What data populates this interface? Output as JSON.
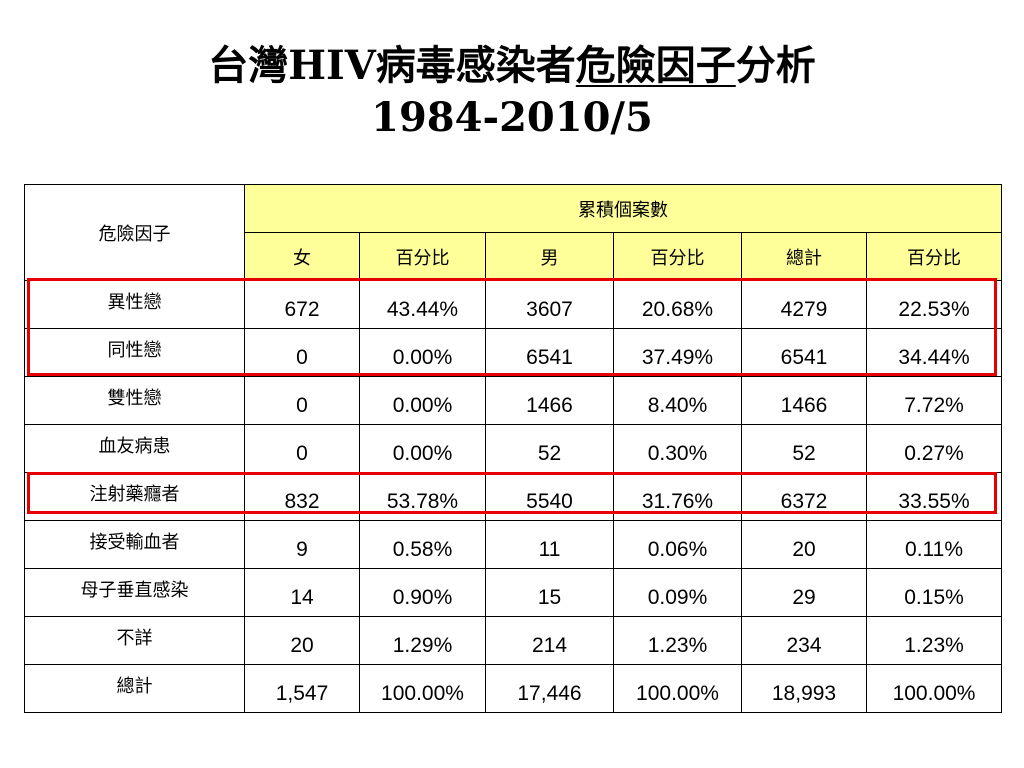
{
  "title": {
    "prefix": "台灣HIV病毒感染者",
    "underlined": "危險因子",
    "suffix": "分析",
    "subtitle": "1984-2010/5"
  },
  "table": {
    "corner_label": "危險因子",
    "group_header": "累積個案數",
    "columns": [
      "女",
      "百分比",
      "男",
      "百分比",
      "總計",
      "百分比"
    ],
    "rows": [
      {
        "label": "異性戀",
        "values": [
          "672",
          "43.44%",
          "3607",
          "20.68%",
          "4279",
          "22.53%"
        ]
      },
      {
        "label": "同性戀",
        "values": [
          "0",
          "0.00%",
          "6541",
          "37.49%",
          "6541",
          "34.44%"
        ]
      },
      {
        "label": "雙性戀",
        "values": [
          "0",
          "0.00%",
          "1466",
          "8.40%",
          "1466",
          "7.72%"
        ]
      },
      {
        "label": "血友病患",
        "values": [
          "0",
          "0.00%",
          "52",
          "0.30%",
          "52",
          "0.27%"
        ]
      },
      {
        "label": "注射藥癮者",
        "values": [
          "832",
          "53.78%",
          "5540",
          "31.76%",
          "6372",
          "33.55%"
        ]
      },
      {
        "label": "接受輸血者",
        "values": [
          "9",
          "0.58%",
          "11",
          "0.06%",
          "20",
          "0.11%"
        ]
      },
      {
        "label": "母子垂直感染",
        "values": [
          "14",
          "0.90%",
          "15",
          "0.09%",
          "29",
          "0.15%"
        ]
      },
      {
        "label": "不詳",
        "values": [
          "20",
          "1.29%",
          "214",
          "1.23%",
          "234",
          "1.23%"
        ]
      },
      {
        "label": "總計",
        "values": [
          "1,547",
          "100.00%",
          "17,446",
          "100.00%",
          "18,993",
          "100.00%"
        ]
      }
    ]
  },
  "colors": {
    "header_fill": "#ffff99",
    "highlight_border": "#e60000"
  }
}
